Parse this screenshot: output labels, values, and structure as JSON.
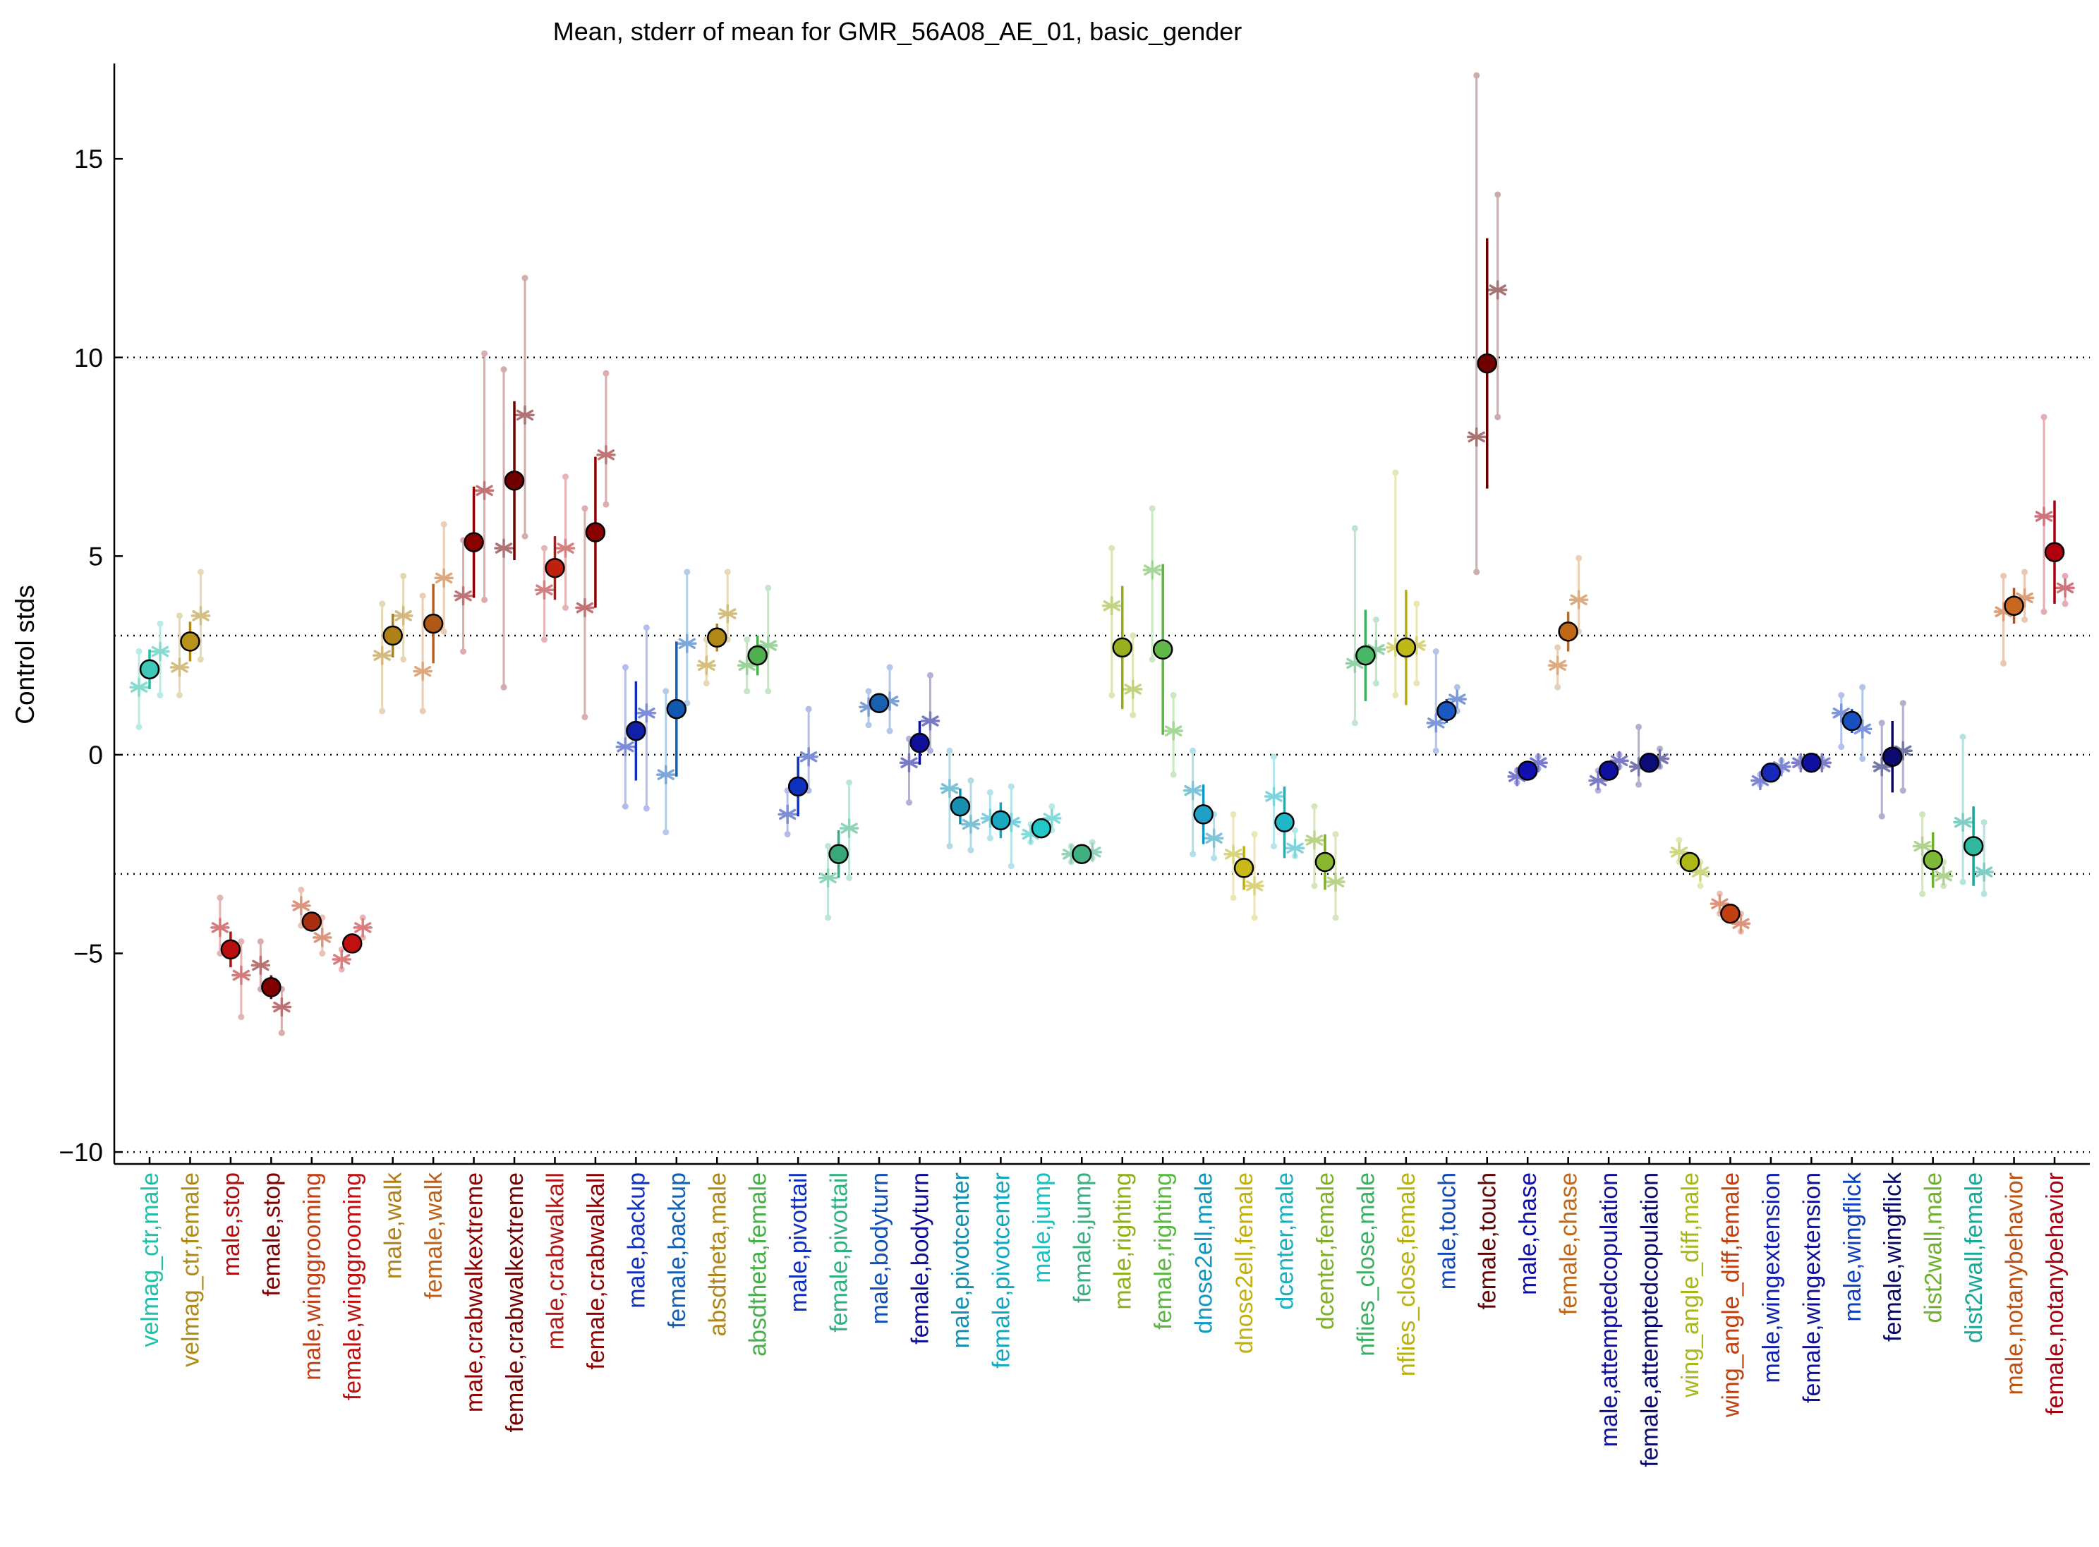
{
  "chart_data": {
    "type": "scatter",
    "title": "Mean, stderr of mean for GMR_56A08_AE_01, basic_gender",
    "xlabel": "",
    "ylabel": "Control stds",
    "ylim": [
      -10.3,
      17.4
    ],
    "yticks": [
      -10,
      -5,
      0,
      5,
      10,
      15
    ],
    "ref_lines": [
      -10,
      -3,
      0,
      3,
      10
    ],
    "grid": false,
    "legend": "none",
    "categories": [
      {
        "label": "velmag_ctr,male",
        "mean": 2.15,
        "err": 0.5,
        "color": "#20c0a8",
        "marker_fill": "#40c8b8",
        "stars": [
          {
            "v": 1.7,
            "lo": 0.7,
            "hi": 2.6
          },
          {
            "v": 2.6,
            "lo": 1.5,
            "hi": 3.3
          }
        ]
      },
      {
        "label": "velmag_ctr,female",
        "mean": 2.85,
        "err": 0.5,
        "color": "#b08a18",
        "marker_fill": "#b8921a",
        "stars": [
          {
            "v": 2.2,
            "lo": 1.5,
            "hi": 3.5
          },
          {
            "v": 3.5,
            "lo": 2.4,
            "hi": 4.6
          }
        ]
      },
      {
        "label": "male,stop",
        "mean": -4.9,
        "err": 0.45,
        "color": "#b01010",
        "marker_fill": "#b81010",
        "stars": [
          {
            "v": -4.35,
            "lo": -5.0,
            "hi": -3.6
          },
          {
            "v": -5.55,
            "lo": -6.6,
            "hi": -4.7
          }
        ]
      },
      {
        "label": "female,stop",
        "mean": -5.85,
        "err": 0.3,
        "color": "#800000",
        "marker_fill": "#800000",
        "stars": [
          {
            "v": -5.3,
            "lo": -5.9,
            "hi": -4.7
          },
          {
            "v": -6.35,
            "lo": -7.0,
            "hi": -5.9
          }
        ]
      },
      {
        "label": "male,winggrooming",
        "mean": -4.2,
        "err": 0.25,
        "color": "#c04018",
        "marker_fill": "#a83010",
        "stars": [
          {
            "v": -3.8,
            "lo": -4.3,
            "hi": -3.4
          },
          {
            "v": -4.6,
            "lo": -5.0,
            "hi": -4.1
          }
        ]
      },
      {
        "label": "female,winggrooming",
        "mean": -4.75,
        "err": 0.2,
        "color": "#c01010",
        "marker_fill": "#c01010",
        "stars": [
          {
            "v": -5.15,
            "lo": -5.4,
            "hi": -4.9
          },
          {
            "v": -4.35,
            "lo": -4.6,
            "hi": -4.1
          }
        ]
      },
      {
        "label": "male,walk",
        "mean": 3.0,
        "err": 0.55,
        "color": "#b08018",
        "marker_fill": "#b08018",
        "stars": [
          {
            "v": 2.5,
            "lo": 1.1,
            "hi": 3.8
          },
          {
            "v": 3.5,
            "lo": 2.4,
            "hi": 4.5
          }
        ]
      },
      {
        "label": "female,walk",
        "mean": 3.3,
        "err": 1.0,
        "color": "#c06018",
        "marker_fill": "#b05818",
        "stars": [
          {
            "v": 2.1,
            "lo": 1.1,
            "hi": 4.0
          },
          {
            "v": 4.45,
            "lo": 3.1,
            "hi": 5.8
          }
        ]
      },
      {
        "label": "male,crabwalkextreme",
        "mean": 5.35,
        "err": 1.4,
        "color": "#900000",
        "marker_fill": "#880000",
        "stars": [
          {
            "v": 4.0,
            "lo": 2.6,
            "hi": 5.4
          },
          {
            "v": 6.65,
            "lo": 3.9,
            "hi": 10.1
          }
        ]
      },
      {
        "label": "female,crabwalkextreme",
        "mean": 6.9,
        "err": 2.0,
        "color": "#700000",
        "marker_fill": "#700000",
        "stars": [
          {
            "v": 5.2,
            "lo": 1.7,
            "hi": 9.7
          },
          {
            "v": 8.55,
            "lo": 5.5,
            "hi": 12.0
          }
        ]
      },
      {
        "label": "male,crabwalkall",
        "mean": 4.7,
        "err": 0.8,
        "color": "#b01818",
        "marker_fill": "#c02010",
        "stars": [
          {
            "v": 4.15,
            "lo": 2.9,
            "hi": 5.2
          },
          {
            "v": 5.2,
            "lo": 3.7,
            "hi": 7.0
          }
        ]
      },
      {
        "label": "female,crabwalkall",
        "mean": 5.6,
        "err": 1.9,
        "color": "#900000",
        "marker_fill": "#880000",
        "stars": [
          {
            "v": 3.7,
            "lo": 0.95,
            "hi": 6.2
          },
          {
            "v": 7.55,
            "lo": 6.3,
            "hi": 9.6
          }
        ]
      },
      {
        "label": "male,backup",
        "mean": 0.6,
        "err": 1.25,
        "color": "#1030c0",
        "marker_fill": "#1020a8",
        "stars": [
          {
            "v": 0.2,
            "lo": -1.3,
            "hi": 2.2
          },
          {
            "v": 1.05,
            "lo": -1.35,
            "hi": 3.2
          }
        ]
      },
      {
        "label": "female,backup",
        "mean": 1.15,
        "err": 1.7,
        "color": "#1060b8",
        "marker_fill": "#1058b0",
        "stars": [
          {
            "v": -0.5,
            "lo": -1.95,
            "hi": 1.6
          },
          {
            "v": 2.8,
            "lo": 1.3,
            "hi": 4.6
          }
        ]
      },
      {
        "label": "absdtheta,male",
        "mean": 2.95,
        "err": 0.35,
        "color": "#b08818",
        "marker_fill": "#b08818",
        "stars": [
          {
            "v": 2.25,
            "lo": 1.8,
            "hi": 2.9
          },
          {
            "v": 3.55,
            "lo": 2.9,
            "hi": 4.6
          }
        ]
      },
      {
        "label": "absdtheta,female",
        "mean": 2.5,
        "err": 0.5,
        "color": "#48b048",
        "marker_fill": "#50b050",
        "stars": [
          {
            "v": 2.25,
            "lo": 1.6,
            "hi": 2.9
          },
          {
            "v": 2.75,
            "lo": 1.6,
            "hi": 4.2
          }
        ]
      },
      {
        "label": "male,pivottail",
        "mean": -0.8,
        "err": 0.75,
        "color": "#1030c0",
        "marker_fill": "#1030c0",
        "stars": [
          {
            "v": -1.5,
            "lo": -2.0,
            "hi": -0.9
          },
          {
            "v": -0.05,
            "lo": -0.9,
            "hi": 1.15
          }
        ]
      },
      {
        "label": "female,pivottail",
        "mean": -2.5,
        "err": 0.6,
        "color": "#30b080",
        "marker_fill": "#38a878",
        "stars": [
          {
            "v": -3.1,
            "lo": -4.1,
            "hi": -2.3
          },
          {
            "v": -1.85,
            "lo": -3.1,
            "hi": -0.7
          }
        ]
      },
      {
        "label": "male,bodyturn",
        "mean": 1.3,
        "err": 0.25,
        "color": "#1050b8",
        "marker_fill": "#1860b0",
        "stars": [
          {
            "v": 1.2,
            "lo": 0.75,
            "hi": 1.6
          },
          {
            "v": 1.35,
            "lo": 0.6,
            "hi": 2.2
          }
        ]
      },
      {
        "label": "female,bodyturn",
        "mean": 0.3,
        "err": 0.55,
        "color": "#0c0c98",
        "marker_fill": "#10109a",
        "stars": [
          {
            "v": -0.2,
            "lo": -1.2,
            "hi": 0.4
          },
          {
            "v": 0.85,
            "lo": 0.1,
            "hi": 2.0
          }
        ]
      },
      {
        "label": "male,pivotcenter",
        "mean": -1.3,
        "err": 0.45,
        "color": "#1090b0",
        "marker_fill": "#1890b0",
        "stars": [
          {
            "v": -0.85,
            "lo": -2.3,
            "hi": 0.1
          },
          {
            "v": -1.75,
            "lo": -2.4,
            "hi": -0.65
          }
        ]
      },
      {
        "label": "female,pivotcenter",
        "mean": -1.65,
        "err": 0.45,
        "color": "#10a8c0",
        "marker_fill": "#18a8c0",
        "stars": [
          {
            "v": -1.6,
            "lo": -2.1,
            "hi": -0.95
          },
          {
            "v": -1.7,
            "lo": -2.8,
            "hi": -0.8
          }
        ]
      },
      {
        "label": "male,jump",
        "mean": -1.85,
        "err": 0.2,
        "color": "#18c0c0",
        "marker_fill": "#20c8c8",
        "stars": [
          {
            "v": -2.0,
            "lo": -2.2,
            "hi": -1.75
          },
          {
            "v": -1.6,
            "lo": -1.9,
            "hi": -1.3
          }
        ]
      },
      {
        "label": "female,jump",
        "mean": -2.5,
        "err": 0.15,
        "color": "#38b080",
        "marker_fill": "#40b080",
        "stars": [
          {
            "v": -2.5,
            "lo": -2.7,
            "hi": -2.3
          },
          {
            "v": -2.45,
            "lo": -2.6,
            "hi": -2.2
          }
        ]
      },
      {
        "label": "male,righting",
        "mean": 2.7,
        "err": 1.55,
        "color": "#90b018",
        "marker_fill": "#98b020",
        "stars": [
          {
            "v": 3.75,
            "lo": 1.5,
            "hi": 5.2
          },
          {
            "v": 1.65,
            "lo": 1.0,
            "hi": 3.0
          }
        ]
      },
      {
        "label": "female,righting",
        "mean": 2.65,
        "err": 2.15,
        "color": "#58b840",
        "marker_fill": "#60b848",
        "stars": [
          {
            "v": 4.65,
            "lo": 2.4,
            "hi": 6.2
          },
          {
            "v": 0.6,
            "lo": -0.5,
            "hi": 1.5
          }
        ]
      },
      {
        "label": "dnose2ell,male",
        "mean": -1.5,
        "err": 0.75,
        "color": "#1098c0",
        "marker_fill": "#20a0c8",
        "stars": [
          {
            "v": -0.9,
            "lo": -2.5,
            "hi": 0.1
          },
          {
            "v": -2.1,
            "lo": -2.6,
            "hi": -1.5
          }
        ]
      },
      {
        "label": "dnose2ell,female",
        "mean": -2.85,
        "err": 0.55,
        "color": "#c0b010",
        "marker_fill": "#c8b818",
        "stars": [
          {
            "v": -2.5,
            "lo": -3.6,
            "hi": -1.5
          },
          {
            "v": -3.3,
            "lo": -4.1,
            "hi": -2.0
          }
        ]
      },
      {
        "label": "dcenter,male",
        "mean": -1.7,
        "err": 0.9,
        "color": "#18b0c0",
        "marker_fill": "#20b8c8",
        "stars": [
          {
            "v": -1.05,
            "lo": -2.3,
            "hi": -0.05
          },
          {
            "v": -2.35,
            "lo": -2.55,
            "hi": -1.9
          }
        ]
      },
      {
        "label": "dcenter,female",
        "mean": -2.7,
        "err": 0.7,
        "color": "#80b028",
        "marker_fill": "#88b830",
        "stars": [
          {
            "v": -2.15,
            "lo": -3.3,
            "hi": -1.3
          },
          {
            "v": -3.2,
            "lo": -4.1,
            "hi": -2.0
          }
        ]
      },
      {
        "label": "nflies_close,male",
        "mean": 2.5,
        "err": 1.15,
        "color": "#38b060",
        "marker_fill": "#48b868",
        "stars": [
          {
            "v": 2.3,
            "lo": 0.8,
            "hi": 5.7
          },
          {
            "v": 2.65,
            "lo": 1.8,
            "hi": 3.4
          }
        ]
      },
      {
        "label": "nflies_close,female",
        "mean": 2.7,
        "err": 1.45,
        "color": "#b8b010",
        "marker_fill": "#c0b818",
        "stars": [
          {
            "v": 2.7,
            "lo": 1.5,
            "hi": 7.1
          },
          {
            "v": 2.75,
            "lo": 1.8,
            "hi": 3.8
          }
        ]
      },
      {
        "label": "male,touch",
        "mean": 1.1,
        "err": 0.3,
        "color": "#1048b8",
        "marker_fill": "#1858c0",
        "stars": [
          {
            "v": 0.8,
            "lo": 0.1,
            "hi": 2.6
          },
          {
            "v": 1.4,
            "lo": 1.1,
            "hi": 1.7
          }
        ]
      },
      {
        "label": "female,touch",
        "mean": 9.85,
        "err": 3.15,
        "color": "#600000",
        "marker_fill": "#700000",
        "stars": [
          {
            "v": 8.0,
            "lo": 4.6,
            "hi": 17.1
          },
          {
            "v": 11.7,
            "lo": 8.5,
            "hi": 14.1
          }
        ]
      },
      {
        "label": "male,chase",
        "mean": -0.4,
        "err": 0.1,
        "color": "#0c0ca8",
        "marker_fill": "#1010b0",
        "stars": [
          {
            "v": -0.55,
            "lo": -0.7,
            "hi": -0.4
          },
          {
            "v": -0.2,
            "lo": -0.35,
            "hi": -0.05
          }
        ]
      },
      {
        "label": "female,chase",
        "mean": 3.1,
        "err": 0.5,
        "color": "#c06818",
        "marker_fill": "#c06818",
        "stars": [
          {
            "v": 2.25,
            "lo": 1.7,
            "hi": 2.7
          },
          {
            "v": 3.9,
            "lo": 3.1,
            "hi": 4.95
          }
        ]
      },
      {
        "label": "male,attemptedcopulation",
        "mean": -0.4,
        "err": 0.2,
        "color": "#101098",
        "marker_fill": "#1010a0",
        "stars": [
          {
            "v": -0.65,
            "lo": -0.9,
            "hi": -0.4
          },
          {
            "v": -0.15,
            "lo": -0.3,
            "hi": 0.0
          }
        ]
      },
      {
        "label": "female,attemptedcopulation",
        "mean": -0.2,
        "err": 0.2,
        "color": "#080870",
        "marker_fill": "#0c0c78",
        "stars": [
          {
            "v": -0.3,
            "lo": -0.75,
            "hi": 0.7
          },
          {
            "v": -0.1,
            "lo": -0.3,
            "hi": 0.15
          }
        ]
      },
      {
        "label": "wing_angle_diff,male",
        "mean": -2.7,
        "err": 0.2,
        "color": "#a8b818",
        "marker_fill": "#b0b818",
        "stars": [
          {
            "v": -2.45,
            "lo": -2.7,
            "hi": -2.15
          },
          {
            "v": -2.95,
            "lo": -3.3,
            "hi": -2.7
          }
        ]
      },
      {
        "label": "wing_angle_diff,female",
        "mean": -4.0,
        "err": 0.2,
        "color": "#c04010",
        "marker_fill": "#c04010",
        "stars": [
          {
            "v": -3.75,
            "lo": -4.0,
            "hi": -3.5
          },
          {
            "v": -4.25,
            "lo": -4.45,
            "hi": -4.0
          }
        ]
      },
      {
        "label": "male,wingextension",
        "mean": -0.45,
        "err": 0.1,
        "color": "#1020b0",
        "marker_fill": "#1828b8",
        "stars": [
          {
            "v": -0.65,
            "lo": -0.75,
            "hi": -0.5
          },
          {
            "v": -0.3,
            "lo": -0.4,
            "hi": -0.15
          }
        ]
      },
      {
        "label": "female,wingextension",
        "mean": -0.2,
        "err": 0.05,
        "color": "#10109a",
        "marker_fill": "#1010a0",
        "stars": [
          {
            "v": -0.2,
            "lo": -0.3,
            "hi": -0.1
          },
          {
            "v": -0.2,
            "lo": -0.3,
            "hi": -0.1
          }
        ]
      },
      {
        "label": "male,wingflick",
        "mean": 0.85,
        "err": 0.3,
        "color": "#1040c0",
        "marker_fill": "#1850c0",
        "stars": [
          {
            "v": 1.05,
            "lo": 0.2,
            "hi": 1.5
          },
          {
            "v": 0.65,
            "lo": -0.1,
            "hi": 1.7
          }
        ]
      },
      {
        "label": "female,wingflick",
        "mean": -0.05,
        "err": 0.9,
        "color": "#080868",
        "marker_fill": "#0c0c70",
        "stars": [
          {
            "v": -0.3,
            "lo": -1.55,
            "hi": 0.8
          },
          {
            "v": 0.1,
            "lo": -0.9,
            "hi": 1.3
          }
        ]
      },
      {
        "label": "dist2wall,male",
        "mean": -2.65,
        "err": 0.7,
        "color": "#70b030",
        "marker_fill": "#80b838",
        "stars": [
          {
            "v": -2.3,
            "lo": -3.5,
            "hi": -1.5
          },
          {
            "v": -3.05,
            "lo": -3.3,
            "hi": -2.7
          }
        ]
      },
      {
        "label": "dist2wall,female",
        "mean": -2.3,
        "err": 1.0,
        "color": "#18a898",
        "marker_fill": "#30b8a0",
        "stars": [
          {
            "v": -1.7,
            "lo": -3.2,
            "hi": 0.45
          },
          {
            "v": -2.95,
            "lo": -3.5,
            "hi": -1.7
          }
        ]
      },
      {
        "label": "male,notanybehavior",
        "mean": 3.75,
        "err": 0.45,
        "color": "#c05010",
        "marker_fill": "#c86820",
        "stars": [
          {
            "v": 3.6,
            "lo": 2.3,
            "hi": 4.5
          },
          {
            "v": 3.95,
            "lo": 3.4,
            "hi": 4.6
          }
        ]
      },
      {
        "label": "female,notanybehavior",
        "mean": 5.1,
        "err": 1.3,
        "color": "#a80010",
        "marker_fill": "#b00010",
        "stars": [
          {
            "v": 6.0,
            "lo": 3.6,
            "hi": 8.5
          },
          {
            "v": 4.2,
            "lo": 3.8,
            "hi": 4.5
          }
        ]
      }
    ]
  }
}
